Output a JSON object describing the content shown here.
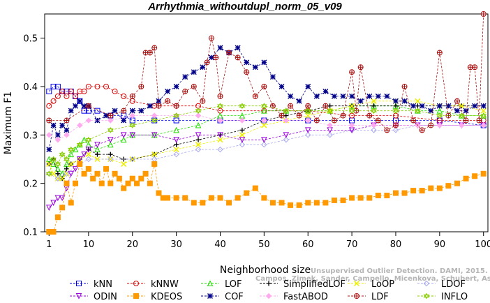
{
  "chart_data": {
    "type": "line",
    "title": "Arrhythmia_withoutdupl_norm_05_v09",
    "xlabel": "Neighborhood size",
    "ylabel": "Maximum F1",
    "xlim": [
      0,
      101
    ],
    "ylim": [
      0.1,
      0.55
    ],
    "xticks": [
      1,
      10,
      20,
      30,
      40,
      50,
      60,
      70,
      80,
      90,
      100
    ],
    "yticks": [
      0.1,
      0.2,
      0.3,
      0.4,
      0.5
    ],
    "legend_position": "bottom",
    "series": [
      {
        "name": "kNN",
        "color": "#0000ee",
        "marker": "square",
        "x": [
          1,
          2,
          3,
          4,
          5,
          6,
          7,
          8,
          9,
          10,
          12,
          15,
          18,
          20,
          25,
          30,
          40,
          50,
          60,
          70,
          80,
          90,
          100
        ],
        "values": [
          0.39,
          0.4,
          0.4,
          0.39,
          0.39,
          0.39,
          0.38,
          0.37,
          0.35,
          0.35,
          0.35,
          0.34,
          0.34,
          0.33,
          0.33,
          0.33,
          0.33,
          0.33,
          0.33,
          0.33,
          0.33,
          0.33,
          0.32
        ]
      },
      {
        "name": "kNNW",
        "color": "#dd0000",
        "marker": "circle",
        "x": [
          1,
          2,
          3,
          4,
          5,
          6,
          7,
          8,
          9,
          10,
          12,
          14,
          16,
          18,
          20,
          25,
          30,
          35,
          40,
          50,
          60,
          70,
          80,
          90,
          100
        ],
        "values": [
          0.36,
          0.37,
          0.38,
          0.39,
          0.38,
          0.39,
          0.38,
          0.39,
          0.39,
          0.4,
          0.4,
          0.4,
          0.39,
          0.38,
          0.37,
          0.36,
          0.36,
          0.36,
          0.35,
          0.35,
          0.35,
          0.34,
          0.34,
          0.33,
          0.33
        ]
      },
      {
        "name": "LOF",
        "color": "#22dd00",
        "marker": "triangle",
        "x": [
          1,
          2,
          3,
          4,
          5,
          6,
          7,
          8,
          9,
          10,
          12,
          15,
          18,
          20,
          25,
          30,
          35,
          40,
          45,
          50,
          55,
          60,
          65,
          70,
          75,
          80,
          85,
          90,
          95,
          100
        ],
        "values": [
          0.25,
          0.24,
          0.23,
          0.22,
          0.24,
          0.26,
          0.27,
          0.28,
          0.29,
          0.28,
          0.27,
          0.28,
          0.29,
          0.3,
          0.3,
          0.31,
          0.32,
          0.34,
          0.34,
          0.35,
          0.35,
          0.35,
          0.35,
          0.36,
          0.36,
          0.36,
          0.35,
          0.35,
          0.34,
          0.34
        ]
      },
      {
        "name": "SimplifiedLOF",
        "color": "#000000",
        "marker": "plus",
        "x": [
          1,
          2,
          3,
          4,
          5,
          6,
          8,
          10,
          12,
          15,
          18,
          20,
          25,
          30,
          35,
          40,
          45,
          50,
          55,
          60,
          65,
          70,
          75,
          80,
          85,
          90,
          95,
          100
        ],
        "values": [
          0.24,
          0.25,
          0.22,
          0.21,
          0.23,
          0.24,
          0.25,
          0.27,
          0.26,
          0.26,
          0.25,
          0.25,
          0.26,
          0.28,
          0.29,
          0.3,
          0.31,
          0.33,
          0.34,
          0.35,
          0.36,
          0.36,
          0.36,
          0.36,
          0.36,
          0.36,
          0.36,
          0.36
        ]
      },
      {
        "name": "LoOP",
        "color": "#eeee00",
        "marker": "x",
        "x": [
          1,
          2,
          3,
          4,
          5,
          6,
          8,
          10,
          12,
          15,
          18,
          20,
          25,
          30,
          35,
          40,
          45,
          50,
          55,
          60,
          65,
          70,
          75,
          80,
          85,
          90,
          95,
          100
        ],
        "values": [
          0.24,
          0.22,
          0.21,
          0.21,
          0.22,
          0.24,
          0.25,
          0.26,
          0.25,
          0.25,
          0.24,
          0.25,
          0.26,
          0.27,
          0.28,
          0.29,
          0.3,
          0.32,
          0.33,
          0.34,
          0.35,
          0.36,
          0.37,
          0.37,
          0.37,
          0.36,
          0.36,
          0.35
        ]
      },
      {
        "name": "LDOF",
        "color": "#aaaaee",
        "marker": "diamond",
        "x": [
          1,
          3,
          5,
          8,
          10,
          15,
          20,
          25,
          30,
          35,
          40,
          45,
          50,
          55,
          60,
          65,
          70,
          75,
          80,
          85,
          90,
          95,
          100
        ],
        "values": [
          0.22,
          0.21,
          0.22,
          0.24,
          0.25,
          0.25,
          0.25,
          0.25,
          0.26,
          0.27,
          0.27,
          0.28,
          0.28,
          0.29,
          0.3,
          0.3,
          0.31,
          0.31,
          0.31,
          0.32,
          0.32,
          0.32,
          0.32
        ]
      },
      {
        "name": "ODIN",
        "color": "#9900dd",
        "marker": "triangle-down",
        "x": [
          1,
          2,
          3,
          4,
          5,
          6,
          7,
          8,
          9,
          10,
          12,
          15,
          18,
          20,
          25,
          30,
          35,
          40,
          45,
          50,
          55,
          60,
          65,
          70,
          75,
          80,
          85,
          90,
          95,
          100
        ],
        "values": [
          0.15,
          0.16,
          0.17,
          0.17,
          0.19,
          0.22,
          0.23,
          0.25,
          0.26,
          0.27,
          0.28,
          0.29,
          0.3,
          0.3,
          0.3,
          0.29,
          0.3,
          0.3,
          0.29,
          0.29,
          0.3,
          0.31,
          0.31,
          0.31,
          0.32,
          0.32,
          0.32,
          0.32,
          0.32,
          0.32
        ]
      },
      {
        "name": "KDEOS",
        "color": "#ff9900",
        "marker": "square-filled",
        "x": [
          1,
          2,
          3,
          4,
          5,
          6,
          7,
          8,
          9,
          10,
          11,
          12,
          13,
          14,
          15,
          16,
          17,
          18,
          19,
          20,
          21,
          22,
          23,
          24,
          25,
          26,
          27,
          28,
          30,
          32,
          34,
          36,
          38,
          40,
          42,
          44,
          46,
          48,
          50,
          52,
          54,
          56,
          58,
          60,
          62,
          64,
          66,
          68,
          70,
          72,
          74,
          76,
          78,
          80,
          82,
          84,
          86,
          88,
          90,
          92,
          94,
          96,
          98,
          100
        ],
        "values": [
          0.1,
          0.1,
          0.13,
          0.15,
          0.2,
          0.16,
          0.2,
          0.24,
          0.22,
          0.23,
          0.21,
          0.22,
          0.2,
          0.23,
          0.2,
          0.22,
          0.21,
          0.19,
          0.2,
          0.21,
          0.2,
          0.21,
          0.22,
          0.2,
          0.24,
          0.18,
          0.17,
          0.17,
          0.17,
          0.17,
          0.16,
          0.16,
          0.17,
          0.17,
          0.16,
          0.17,
          0.18,
          0.19,
          0.17,
          0.16,
          0.16,
          0.155,
          0.155,
          0.16,
          0.16,
          0.16,
          0.165,
          0.165,
          0.17,
          0.17,
          0.17,
          0.175,
          0.175,
          0.18,
          0.18,
          0.185,
          0.185,
          0.19,
          0.19,
          0.195,
          0.2,
          0.21,
          0.215,
          0.22
        ]
      },
      {
        "name": "COF",
        "color": "#000088",
        "marker": "star",
        "x": [
          1,
          2,
          3,
          4,
          5,
          6,
          7,
          8,
          9,
          10,
          12,
          14,
          16,
          18,
          20,
          22,
          24,
          26,
          28,
          30,
          32,
          34,
          36,
          38,
          40,
          42,
          44,
          46,
          48,
          50,
          52,
          54,
          56,
          58,
          60,
          62,
          64,
          66,
          68,
          70,
          72,
          74,
          76,
          78,
          80,
          82,
          84,
          86,
          88,
          90,
          92,
          94,
          96,
          98,
          100
        ],
        "values": [
          0.27,
          0.32,
          0.3,
          0.32,
          0.31,
          0.35,
          0.36,
          0.37,
          0.36,
          0.36,
          0.33,
          0.34,
          0.35,
          0.33,
          0.35,
          0.35,
          0.36,
          0.37,
          0.39,
          0.4,
          0.42,
          0.43,
          0.44,
          0.46,
          0.48,
          0.47,
          0.48,
          0.45,
          0.44,
          0.45,
          0.42,
          0.4,
          0.38,
          0.37,
          0.4,
          0.38,
          0.39,
          0.38,
          0.38,
          0.38,
          0.37,
          0.38,
          0.38,
          0.38,
          0.37,
          0.37,
          0.36,
          0.36,
          0.35,
          0.36,
          0.36,
          0.35,
          0.35,
          0.36,
          0.36
        ]
      },
      {
        "name": "FastABOD",
        "color": "#ffaaee",
        "marker": "diamond-filled",
        "x": [
          1,
          3,
          5,
          8,
          10,
          15,
          20,
          25,
          30,
          35,
          40,
          45,
          50,
          55,
          60,
          65,
          70,
          75,
          80,
          85,
          90,
          95,
          100
        ],
        "values": [
          0.3,
          0.29,
          0.3,
          0.32,
          0.33,
          0.33,
          0.34,
          0.34,
          0.34,
          0.34,
          0.33,
          0.33,
          0.33,
          0.33,
          0.33,
          0.32,
          0.32,
          0.32,
          0.32,
          0.32,
          0.32,
          0.32,
          0.32
        ]
      },
      {
        "name": "LDF",
        "color": "#aa1111",
        "marker": "circle-plus",
        "x": [
          1,
          5,
          10,
          15,
          18,
          20,
          22,
          23,
          24,
          25,
          26,
          28,
          30,
          32,
          34,
          36,
          37,
          38,
          39,
          40,
          42,
          44,
          46,
          48,
          50,
          52,
          54,
          56,
          58,
          60,
          62,
          64,
          66,
          68,
          70,
          71,
          72,
          74,
          76,
          78,
          80,
          82,
          84,
          86,
          88,
          90,
          92,
          94,
          96,
          97,
          98,
          99,
          100
        ],
        "values": [
          0.33,
          0.33,
          0.36,
          0.34,
          0.35,
          0.38,
          0.4,
          0.47,
          0.47,
          0.48,
          0.36,
          0.37,
          0.36,
          0.39,
          0.4,
          0.37,
          0.45,
          0.5,
          0.46,
          0.38,
          0.47,
          0.46,
          0.43,
          0.38,
          0.4,
          0.36,
          0.34,
          0.36,
          0.34,
          0.36,
          0.33,
          0.36,
          0.33,
          0.34,
          0.43,
          0.35,
          0.44,
          0.34,
          0.33,
          0.31,
          0.32,
          0.4,
          0.33,
          0.31,
          0.32,
          0.47,
          0.34,
          0.37,
          0.33,
          0.44,
          0.44,
          0.33,
          0.55
        ]
      },
      {
        "name": "INFLO",
        "color": "#88cc00",
        "marker": "hexagram",
        "x": [
          1,
          2,
          3,
          4,
          5,
          6,
          8,
          10,
          15,
          20,
          25,
          30,
          35,
          40,
          45,
          50,
          55,
          60,
          65,
          70,
          75,
          80,
          85,
          90,
          95,
          100
        ],
        "values": [
          0.22,
          0.25,
          0.24,
          0.26,
          0.25,
          0.27,
          0.28,
          0.29,
          0.31,
          0.32,
          0.33,
          0.34,
          0.35,
          0.36,
          0.36,
          0.36,
          0.35,
          0.35,
          0.35,
          0.35,
          0.35,
          0.35,
          0.35,
          0.34,
          0.34,
          0.34
        ]
      }
    ]
  },
  "watermark": {
    "line1": "Unsupervised Outlier Detection. DAMI, 2015.",
    "line2": "Campos, Zimek, Sander, Campello, Micenkova, Schubert, Assent, Houle"
  }
}
